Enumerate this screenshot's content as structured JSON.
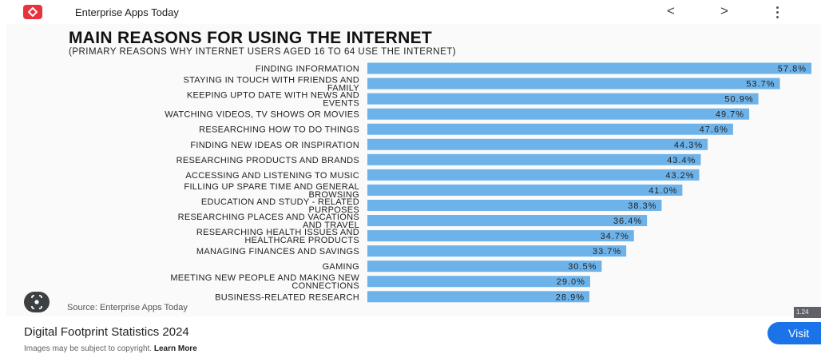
{
  "header": {
    "site_name": "Enterprise Apps Today",
    "back_glyph": "<",
    "forward_glyph": ">",
    "logo_color": "#e8323c"
  },
  "chart_data": {
    "type": "bar",
    "orientation": "horizontal",
    "title": "MAIN REASONS FOR USING THE INTERNET",
    "subtitle": "(PRIMARY REASONS WHY INTERNET USERS AGED 16 TO 64 USE THE INTERNET)",
    "bar_color": "#6db3ea",
    "xlim": [
      0,
      57.8
    ],
    "grid": false,
    "categories": [
      [
        "FINDING INFORMATION"
      ],
      [
        "STAYING IN TOUCH WITH FRIENDS AND",
        "FAMILY"
      ],
      [
        "KEEPING UPTO DATE WITH NEWS AND",
        "EVENTS"
      ],
      [
        "WATCHING VIDEOS, TV SHOWS OR MOVIES"
      ],
      [
        "RESEARCHING HOW TO DO THINGS"
      ],
      [
        "FINDING NEW IDEAS OR INSPIRATION"
      ],
      [
        "RESEARCHING PRODUCTS AND BRANDS"
      ],
      [
        "ACCESSING AND LISTENING TO MUSIC"
      ],
      [
        "FILLING UP SPARE TIME AND GENERAL",
        "BROWSING"
      ],
      [
        "EDUCATION AND STUDY - RELATED",
        "PURPOSES"
      ],
      [
        "RESEARCHING PLACES AND VACATIONS",
        "AND TRAVEL"
      ],
      [
        "RESEARCHING HEALTH ISSUES AND",
        "HEALTHCARE PRODUCTS"
      ],
      [
        "MANAGING FINANCES AND SAVINGS"
      ],
      [
        "GAMING"
      ],
      [
        "MEETING NEW PEOPLE AND MAKING NEW",
        "CONNECTIONS"
      ],
      [
        "BUSINESS-RELATED RESEARCH"
      ]
    ],
    "values": [
      57.8,
      53.7,
      50.9,
      49.7,
      47.6,
      44.3,
      43.4,
      43.2,
      41.0,
      38.3,
      36.4,
      34.7,
      33.7,
      30.5,
      29.0,
      28.9
    ],
    "value_labels": [
      "57.8%",
      "53.7%",
      "50.9%",
      "49.7%",
      "47.6%",
      "44.3%",
      "43.4%",
      "43.2%",
      "41.0%",
      "38.3%",
      "36.4%",
      "34.7%",
      "33.7%",
      "30.5%",
      "29.0%",
      "28.9%"
    ]
  },
  "source": "Source: Enterprise Apps Today",
  "badge": "1.24",
  "page_title": "Digital Footprint Statistics 2024",
  "visit_label": "Visit",
  "copyright": {
    "text": "Images may be subject to copyright.",
    "link": "Learn More"
  }
}
